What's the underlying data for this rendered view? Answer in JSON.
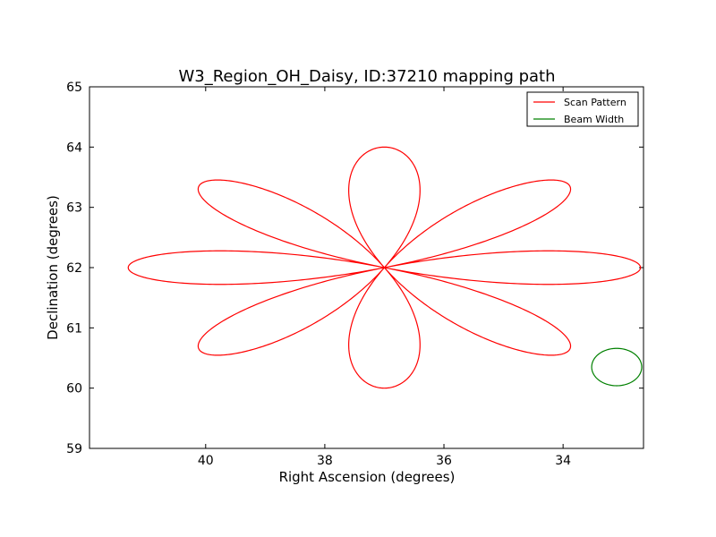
{
  "chart_data": {
    "type": "line",
    "title": "W3_Region_OH_Daisy, ID:37210 mapping path",
    "xlabel": "Right Ascension (degrees)",
    "ylabel": "Declination (degrees)",
    "xlim": [
      41.95,
      32.65
    ],
    "ylim": [
      59,
      65
    ],
    "x_ticks": [
      40,
      38,
      36,
      34
    ],
    "x_tick_labels": [
      "40",
      "38",
      "36",
      "34"
    ],
    "y_ticks": [
      59,
      60,
      61,
      62,
      63,
      64,
      65
    ],
    "y_tick_labels": [
      "59",
      "60",
      "61",
      "62",
      "63",
      "64",
      "65"
    ],
    "grid": false,
    "legend": {
      "position": "top-right"
    },
    "series": [
      {
        "name": "Scan Pattern",
        "color": "#ff0000",
        "pattern": "daisy",
        "center": [
          37.0,
          62.0
        ],
        "ra_radius": 4.3,
        "dec_radius": 2.0,
        "petals": 8
      },
      {
        "name": "Beam Width",
        "color": "#008000",
        "shape": "circle",
        "center": [
          33.1,
          60.35
        ],
        "ra_radius": 0.42,
        "dec_radius": 0.31
      }
    ]
  }
}
